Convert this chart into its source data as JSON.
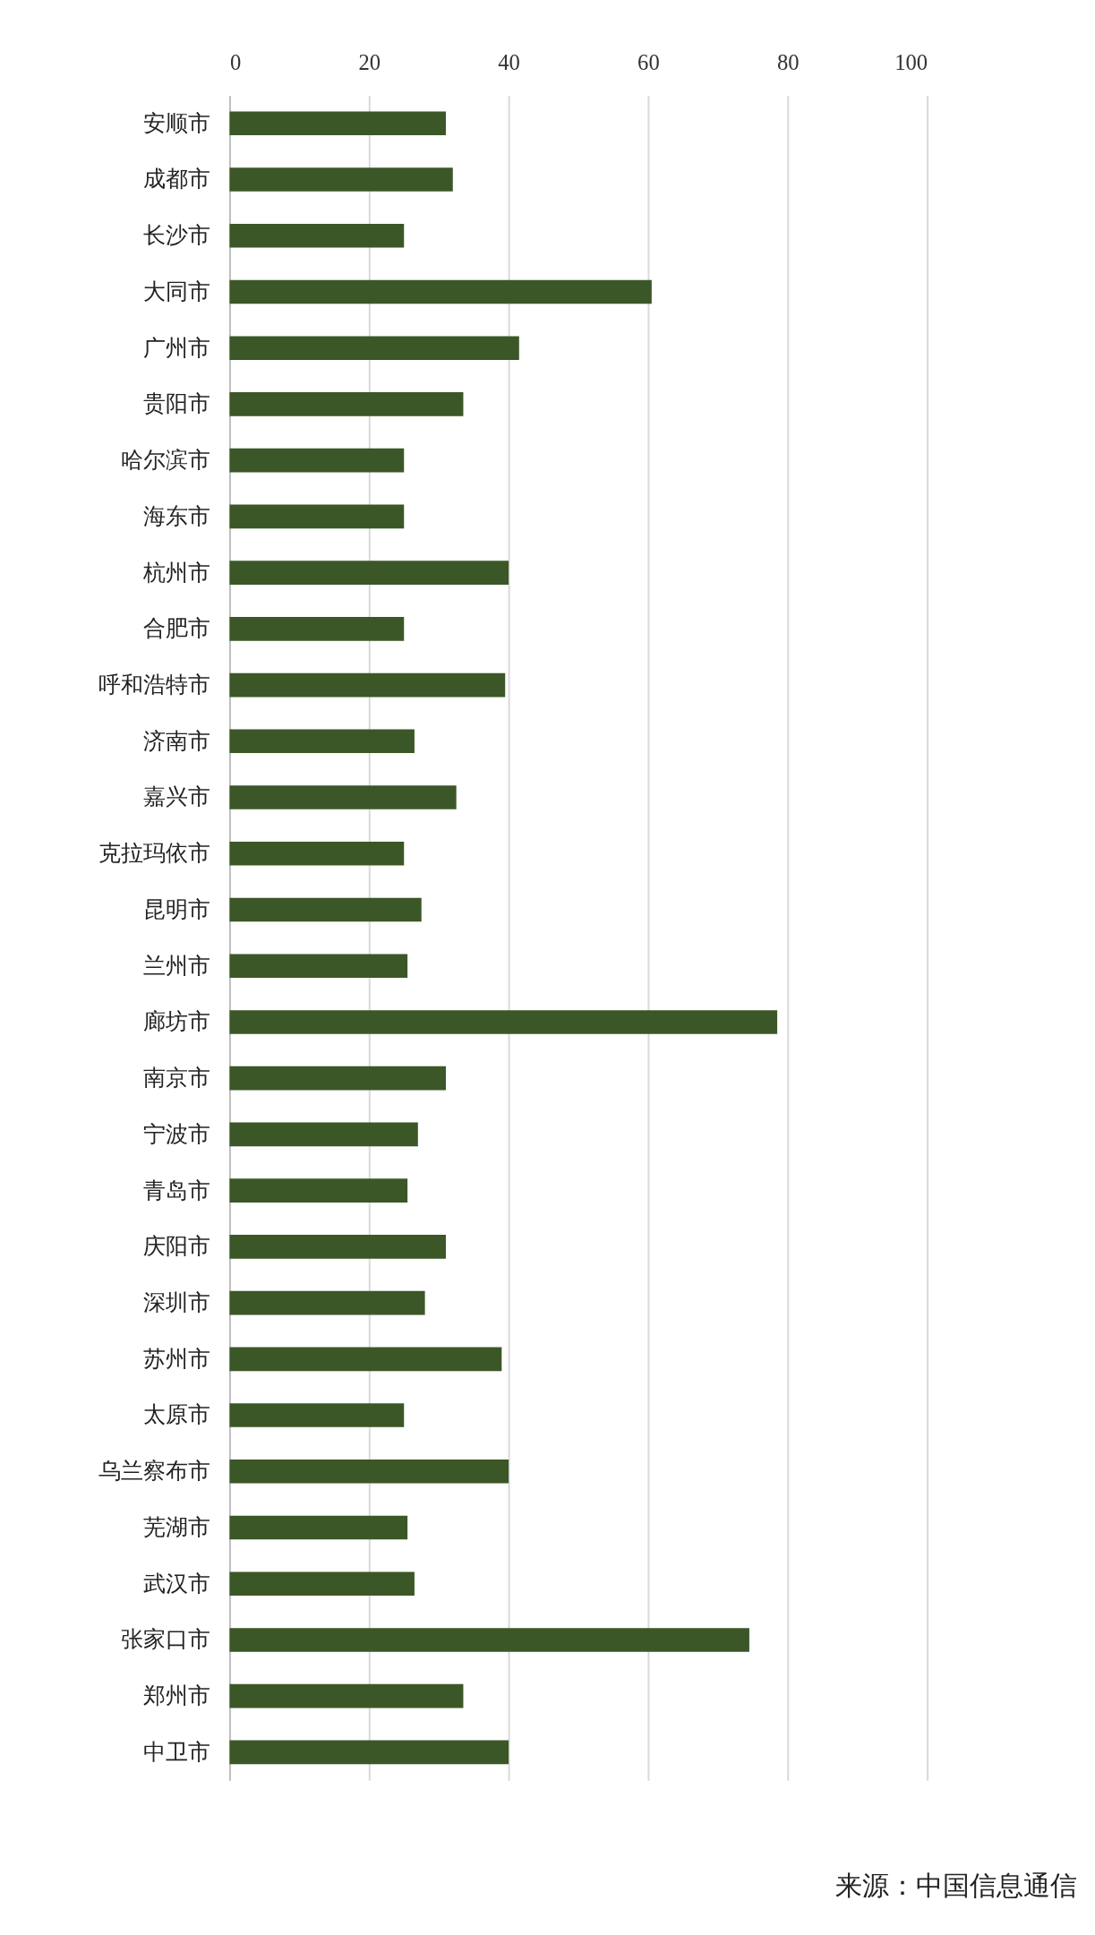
{
  "chart_data": {
    "type": "bar",
    "orientation": "horizontal",
    "categories": [
      "安顺市",
      "成都市",
      "长沙市",
      "大同市",
      "广州市",
      "贵阳市",
      "哈尔滨市",
      "海东市",
      "杭州市",
      "合肥市",
      "呼和浩特市",
      "济南市",
      "嘉兴市",
      "克拉玛依市",
      "昆明市",
      "兰州市",
      "廊坊市",
      "南京市",
      "宁波市",
      "青岛市",
      "庆阳市",
      "深圳市",
      "苏州市",
      "太原市",
      "乌兰察布市",
      "芜湖市",
      "武汉市",
      "张家口市",
      "郑州市",
      "中卫市"
    ],
    "values": [
      31,
      32,
      25,
      60.5,
      41.5,
      33.5,
      25,
      25,
      40,
      25,
      39.5,
      26.5,
      32.5,
      25,
      27.5,
      25.5,
      78.5,
      31,
      27,
      25.5,
      31,
      28,
      39,
      25,
      40,
      25.5,
      26.5,
      74.5,
      33.5,
      40
    ],
    "color": "#3b5727",
    "xlim": [
      0,
      100
    ],
    "xticks": [
      0,
      20,
      40,
      60,
      80,
      100
    ],
    "grid": "x",
    "annotations": [
      "来源：中国信息通信"
    ]
  }
}
